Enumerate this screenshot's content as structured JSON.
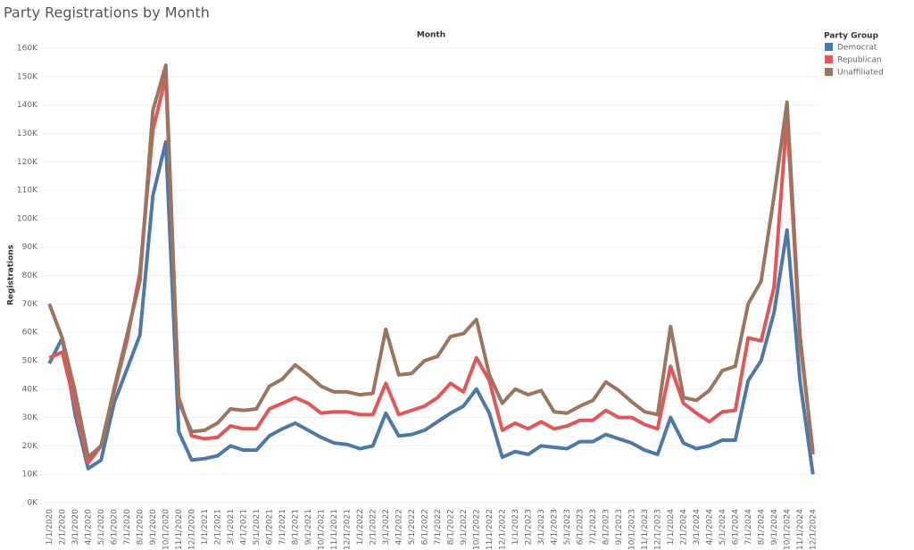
{
  "chart_data": {
    "type": "line",
    "title": "Party Registrations by Month",
    "x_header": "Month",
    "y_label": "Registrations",
    "legend_title": "Party Group",
    "categories": [
      "1/1/2020",
      "2/1/2020",
      "3/1/2020",
      "4/1/2020",
      "5/1/2020",
      "6/1/2020",
      "7/1/2020",
      "8/1/2020",
      "9/1/2020",
      "10/1/2020",
      "11/1/2020",
      "12/1/2020",
      "1/1/2021",
      "2/1/2021",
      "3/1/2021",
      "4/1/2021",
      "5/1/2021",
      "6/1/2021",
      "7/1/2021",
      "8/1/2021",
      "9/1/2021",
      "10/1/2021",
      "11/1/2021",
      "12/1/2021",
      "1/1/2022",
      "2/1/2022",
      "3/1/2022",
      "4/1/2022",
      "5/1/2022",
      "6/1/2022",
      "7/1/2022",
      "8/1/2022",
      "9/1/2022",
      "10/1/2022",
      "11/1/2022",
      "12/1/2022",
      "1/1/2023",
      "2/1/2023",
      "3/1/2023",
      "4/1/2023",
      "5/1/2023",
      "6/1/2023",
      "7/1/2023",
      "8/1/2023",
      "9/1/2023",
      "10/1/2023",
      "11/1/2023",
      "12/1/2023",
      "1/1/2024",
      "2/1/2024",
      "3/1/2024",
      "4/1/2024",
      "5/1/2024",
      "6/1/2024",
      "7/1/2024",
      "8/1/2024",
      "9/1/2024",
      "10/1/2024",
      "11/1/2024",
      "12/1/2024"
    ],
    "series": [
      {
        "name": "Democrat",
        "color": "#4e79a7",
        "values": [
          49000,
          58000,
          31000,
          12000,
          15000,
          35000,
          47000,
          59000,
          108000,
          127000,
          25000,
          15000,
          15500,
          16500,
          20000,
          18500,
          18500,
          23500,
          26000,
          28000,
          25500,
          23000,
          21000,
          20500,
          19000,
          20000,
          31500,
          23500,
          24000,
          25500,
          28500,
          31500,
          34000,
          40000,
          31500,
          16000,
          18000,
          17000,
          20000,
          19500,
          19000,
          21500,
          21500,
          24000,
          22500,
          21000,
          18500,
          17000,
          30000,
          21000,
          19000,
          20000,
          22000,
          22000,
          43000,
          50000,
          67000,
          96000,
          43000,
          10000
        ]
      },
      {
        "name": "Republican",
        "color": "#e15759",
        "values": [
          51000,
          53000,
          34000,
          14000,
          20000,
          39000,
          57000,
          81000,
          131000,
          150000,
          37000,
          23500,
          22500,
          23000,
          27000,
          26000,
          26000,
          33000,
          35000,
          37000,
          35000,
          31500,
          32000,
          32000,
          31000,
          31000,
          42000,
          31000,
          32500,
          34000,
          37000,
          42000,
          39000,
          51000,
          43000,
          25500,
          28000,
          26000,
          28500,
          26000,
          27000,
          29000,
          29000,
          32500,
          30000,
          30000,
          27500,
          26000,
          48000,
          35000,
          31500,
          28500,
          32000,
          32500,
          58000,
          57000,
          76000,
          136000,
          57000,
          18000
        ]
      },
      {
        "name": "Unaffiliated",
        "color": "#9c755f",
        "values": [
          70000,
          58000,
          39000,
          16000,
          20000,
          40000,
          59000,
          78000,
          138000,
          154000,
          35500,
          25000,
          25500,
          28000,
          33000,
          32500,
          33000,
          41000,
          43500,
          48500,
          45000,
          41000,
          39000,
          39000,
          38000,
          38500,
          61000,
          45000,
          45500,
          50000,
          51500,
          58500,
          59500,
          64500,
          45000,
          35000,
          40000,
          38000,
          39500,
          32000,
          31500,
          34000,
          36000,
          42500,
          39500,
          35500,
          32000,
          31000,
          62000,
          37000,
          36000,
          39500,
          46500,
          48000,
          70000,
          78000,
          108000,
          141000,
          59000,
          17000
        ]
      }
    ],
    "ylim": [
      0,
      160000
    ],
    "yticks": [
      {
        "value": 0,
        "label": "0K"
      },
      {
        "value": 10000,
        "label": "10K"
      },
      {
        "value": 20000,
        "label": "20K"
      },
      {
        "value": 30000,
        "label": "30K"
      },
      {
        "value": 40000,
        "label": "40K"
      },
      {
        "value": 50000,
        "label": "50K"
      },
      {
        "value": 60000,
        "label": "60K"
      },
      {
        "value": 70000,
        "label": "70K"
      },
      {
        "value": 80000,
        "label": "80K"
      },
      {
        "value": 90000,
        "label": "90K"
      },
      {
        "value": 100000,
        "label": "100K"
      },
      {
        "value": 110000,
        "label": "110K"
      },
      {
        "value": 120000,
        "label": "120K"
      },
      {
        "value": 130000,
        "label": "130K"
      },
      {
        "value": 140000,
        "label": "140K"
      },
      {
        "value": 150000,
        "label": "150K"
      },
      {
        "value": 160000,
        "label": "160K"
      }
    ],
    "grid": true
  }
}
